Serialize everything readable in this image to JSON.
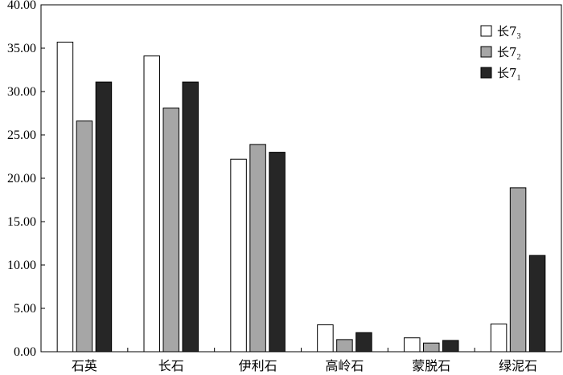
{
  "chart_data": {
    "type": "bar",
    "categories": [
      "石英",
      "长石",
      "伊利石",
      "高岭石",
      "蒙脱石",
      "绿泥石"
    ],
    "series": [
      {
        "name": "长7",
        "subscript": "3",
        "color": "#ffffff",
        "values": [
          35.7,
          34.1,
          22.2,
          3.1,
          1.6,
          3.2
        ]
      },
      {
        "name": "长7",
        "subscript": "2",
        "color": "#a6a6a6",
        "values": [
          26.6,
          28.1,
          23.9,
          1.4,
          1.0,
          18.9
        ]
      },
      {
        "name": "长7",
        "subscript": "1",
        "color": "#262626",
        "values": [
          31.1,
          31.1,
          23.0,
          2.2,
          1.3,
          11.1
        ]
      }
    ],
    "ylim": [
      0,
      40
    ],
    "yticks": [
      "0.00",
      "5.00",
      "10.00",
      "15.00",
      "20.00",
      "25.00",
      "30.00",
      "35.00",
      "40.00"
    ],
    "xlabel": "",
    "ylabel": "",
    "title": "",
    "legend_position": "top-right",
    "grid": false
  }
}
